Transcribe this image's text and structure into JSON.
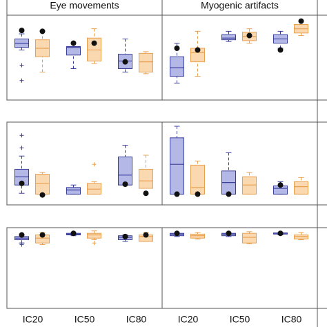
{
  "chart_data": [
    {
      "type": "box",
      "title": "Eye movements",
      "ylim": [
        0,
        100
      ],
      "series": [
        {
          "color": "#3a3f9a",
          "fill": "#b3b8e6",
          "boxes": [
            {
              "low": 59,
              "q1": 62,
              "median": 67,
              "q3": 72,
              "high": 78,
              "outliers": [
                41,
                23
              ],
              "marker": 82
            },
            {
              "low": 37,
              "q1": 53,
              "median": 62,
              "q3": 63,
              "high": 67,
              "outliers": [],
              "marker": 67
            },
            {
              "low": 33,
              "q1": 37,
              "median": 46,
              "q3": 54,
              "high": 72,
              "outliers": [],
              "marker": 45
            }
          ]
        },
        {
          "color": "#e8a050",
          "fill": "#fad9b0",
          "boxes": [
            {
              "low": 33,
              "q1": 51,
              "median": 61,
              "q3": 71,
              "high": 81,
              "outliers": [],
              "marker": 81
            },
            {
              "low": 43,
              "q1": 46,
              "median": 59,
              "q3": 73,
              "high": 84,
              "outliers": [],
              "marker": 67
            },
            {
              "low": 31,
              "q1": 33,
              "median": 45,
              "q3": 55,
              "high": 57,
              "outliers": [],
              "marker": null
            }
          ]
        }
      ]
    },
    {
      "type": "box",
      "title": "Myogenic artifacts",
      "ylim": [
        0,
        100
      ],
      "series": [
        {
          "color": "#3a3f9a",
          "fill": "#b3b8e6",
          "boxes": [
            {
              "low": 20,
              "q1": 28,
              "median": 38,
              "q3": 51,
              "high": 67,
              "outliers": [],
              "marker": 61
            },
            {
              "low": 69,
              "q1": 71,
              "median": 73,
              "q3": 77,
              "high": 81,
              "outliers": [],
              "marker": null
            },
            {
              "low": 61,
              "q1": 67,
              "median": 72,
              "q3": 77,
              "high": 81,
              "outliers": [],
              "marker": 59
            }
          ]
        },
        {
          "color": "#e8a050",
          "fill": "#fad9b0",
          "boxes": [
            {
              "low": 28,
              "q1": 45,
              "median": 56,
              "q3": 61,
              "high": 81,
              "outliers": [],
              "marker": 59
            },
            {
              "low": 67,
              "q1": 70,
              "median": 75,
              "q3": 80,
              "high": 84,
              "outliers": [],
              "marker": 76
            },
            {
              "low": 76,
              "q1": 79,
              "median": 84,
              "q3": 89,
              "high": 93,
              "outliers": [],
              "marker": 93
            }
          ]
        }
      ]
    },
    {
      "type": "box",
      "ylim": [
        0,
        100
      ],
      "series": [
        {
          "color": "#3a3f9a",
          "fill": "#b3b8e6",
          "boxes": [
            {
              "low": 14,
              "q1": 24,
              "median": 34,
              "q3": 43,
              "high": 59,
              "outliers": [
                84,
                69
              ],
              "marker": 26
            },
            {
              "low": 13,
              "q1": 13,
              "median": 18,
              "q3": 21,
              "high": 24,
              "outliers": [],
              "marker": null
            },
            {
              "low": 24,
              "q1": 24,
              "median": 36,
              "q3": 58,
              "high": 72,
              "outliers": [],
              "marker": 25
            }
          ]
        },
        {
          "color": "#e8a050",
          "fill": "#fad9b0",
          "boxes": [
            {
              "low": 12,
              "q1": 13,
              "median": 26,
              "q3": 37,
              "high": 39,
              "outliers": [],
              "marker": 12
            },
            {
              "low": 13,
              "q1": 13,
              "median": 19,
              "q3": 26,
              "high": 28,
              "outliers": [
                49
              ],
              "marker": null
            },
            {
              "low": 14,
              "q1": 20,
              "median": 29,
              "q3": 43,
              "high": 60,
              "outliers": [],
              "marker": 14
            }
          ]
        }
      ]
    },
    {
      "type": "box",
      "ylim": [
        0,
        100
      ],
      "series": [
        {
          "color": "#3a3f9a",
          "fill": "#b3b8e6",
          "boxes": [
            {
              "low": 13,
              "q1": 13,
              "median": 49,
              "q3": 81,
              "high": 95,
              "outliers": [],
              "marker": 13
            },
            {
              "low": 13,
              "q1": 13,
              "median": 27,
              "q3": 41,
              "high": 63,
              "outliers": [],
              "marker": 13
            },
            {
              "low": 13,
              "q1": 13,
              "median": 20,
              "q3": 23,
              "high": 28,
              "outliers": [],
              "marker": 24
            }
          ]
        },
        {
          "color": "#e8a050",
          "fill": "#fad9b0",
          "boxes": [
            {
              "low": 13,
              "q1": 13,
              "median": 21,
              "q3": 48,
              "high": 53,
              "outliers": [],
              "marker": 13
            },
            {
              "low": 13,
              "q1": 13,
              "median": 24,
              "q3": 34,
              "high": 39,
              "outliers": [],
              "marker": null
            },
            {
              "low": 13,
              "q1": 13,
              "median": 22,
              "q3": 28,
              "high": 33,
              "outliers": [],
              "marker": null
            }
          ]
        }
      ]
    },
    {
      "type": "box",
      "ylim": [
        0,
        100
      ],
      "categories": [
        "IC20",
        "IC50",
        "IC80"
      ],
      "series": [
        {
          "color": "#3a3f9a",
          "fill": "#b3b8e6",
          "boxes": [
            {
              "low": 81,
              "q1": 85,
              "median": 87,
              "q3": 89,
              "high": 91,
              "outliers": [
                81,
                79
              ],
              "marker": 91
            },
            {
              "low": 90,
              "q1": 91,
              "median": 92,
              "q3": 93,
              "high": 94,
              "outliers": [],
              "marker": 93
            },
            {
              "low": 83,
              "q1": 85,
              "median": 88,
              "q3": 90,
              "high": 91,
              "outliers": [],
              "marker": 89
            }
          ]
        },
        {
          "color": "#e8a050",
          "fill": "#fad9b0",
          "boxes": [
            {
              "low": 79,
              "q1": 81,
              "median": 87,
              "q3": 91,
              "high": 94,
              "outliers": [],
              "marker": 91
            },
            {
              "low": 85,
              "q1": 87,
              "median": 91,
              "q3": 93,
              "high": 96,
              "outliers": [
                81
              ],
              "marker": null
            },
            {
              "low": 83,
              "q1": 83,
              "median": 89,
              "q3": 91,
              "high": 94,
              "outliers": [],
              "marker": 91
            }
          ]
        }
      ]
    },
    {
      "type": "box",
      "ylim": [
        0,
        100
      ],
      "categories": [
        "IC20",
        "IC50",
        "IC80"
      ],
      "series": [
        {
          "color": "#3a3f9a",
          "fill": "#b3b8e6",
          "boxes": [
            {
              "low": 89,
              "q1": 90,
              "median": 92,
              "q3": 93,
              "high": 94,
              "outliers": [],
              "marker": 93
            },
            {
              "low": 89,
              "q1": 90,
              "median": 92,
              "q3": 93,
              "high": 94,
              "outliers": [],
              "marker": 93
            },
            {
              "low": 91,
              "q1": 92,
              "median": 93,
              "q3": 93.5,
              "high": 94,
              "outliers": [],
              "marker": 93
            }
          ]
        },
        {
          "color": "#e8a050",
          "fill": "#fad9b0",
          "boxes": [
            {
              "low": 86,
              "q1": 87,
              "median": 90,
              "q3": 92,
              "high": 94,
              "outliers": [],
              "marker": null
            },
            {
              "low": 80,
              "q1": 81,
              "median": 88,
              "q3": 93,
              "high": 95,
              "outliers": [],
              "marker": null
            },
            {
              "low": 85,
              "q1": 86,
              "median": 89,
              "q3": 91,
              "high": 94,
              "outliers": [],
              "marker": null
            }
          ]
        }
      ]
    }
  ]
}
